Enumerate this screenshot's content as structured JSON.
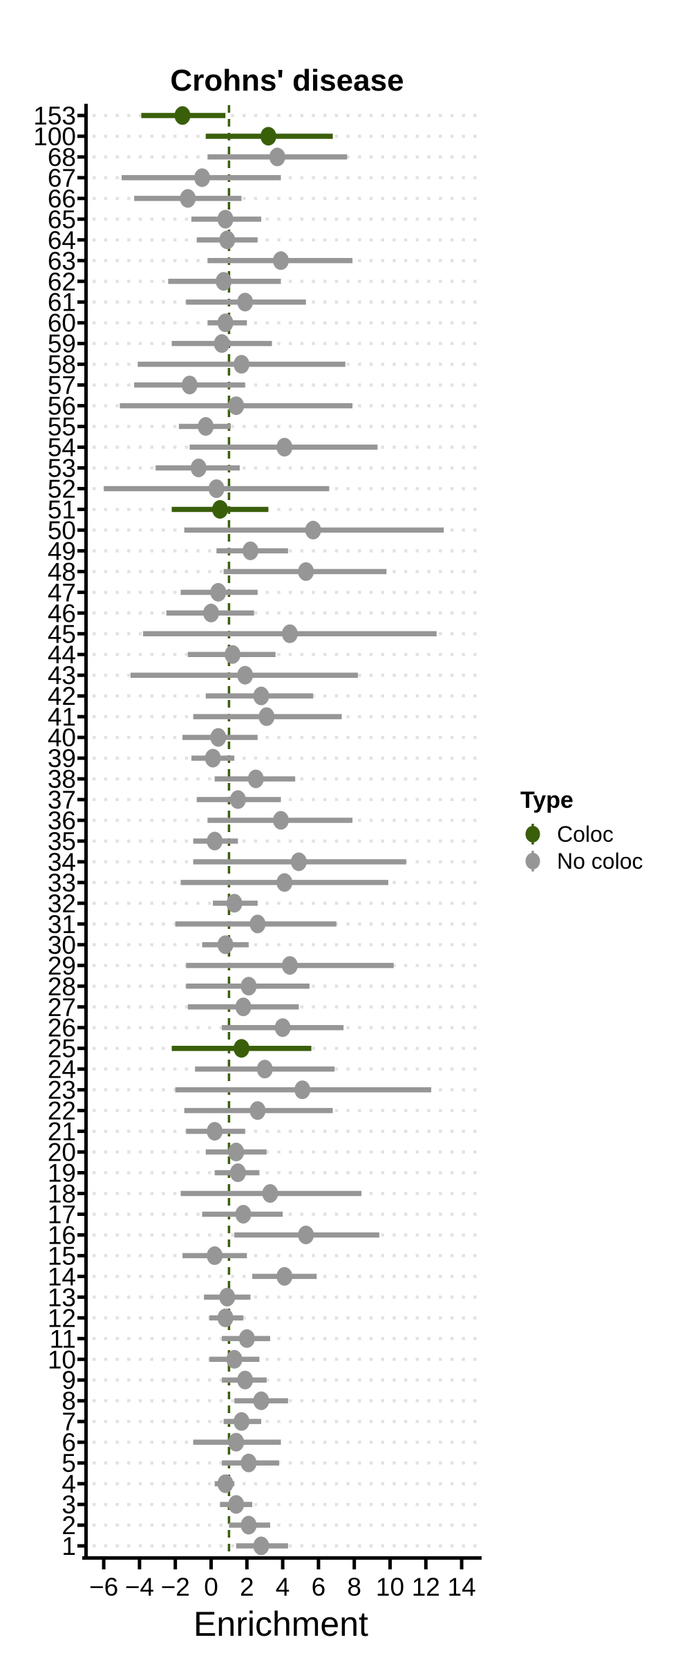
{
  "chart_data": {
    "type": "scatter",
    "variant": "forest-pointrange-horizontal",
    "title": "Crohns' disease",
    "xlabel": "Enrichment",
    "ylabel": "",
    "xlim": [
      -7.1,
      15.1
    ],
    "x_ticks": [
      {
        "v": -6,
        "label": "−6"
      },
      {
        "v": -4,
        "label": "−4"
      },
      {
        "v": -2,
        "label": "−2"
      },
      {
        "v": 0,
        "label": "0"
      },
      {
        "v": 2,
        "label": "2"
      },
      {
        "v": 4,
        "label": "4"
      },
      {
        "v": 6,
        "label": "6"
      },
      {
        "v": 8,
        "label": "8"
      },
      {
        "v": 10,
        "label": "10"
      },
      {
        "v": 12,
        "label": "12"
      },
      {
        "v": 14,
        "label": "14"
      }
    ],
    "reference_line_x": 1,
    "grid": "dotted-horizontal-per-row",
    "legend": {
      "title": "Type",
      "position": "right",
      "entries": [
        {
          "label": "Coloc",
          "type": "Coloc"
        },
        {
          "label": "No coloc",
          "type": "No coloc"
        }
      ]
    },
    "colors": {
      "coloc": "#3A5F0B",
      "no_coloc": "#969696",
      "reference_line": "#3A5F0B",
      "grid_dots": "#E2E2E2",
      "axis": "#000000",
      "title_text": "#1A1A1A"
    },
    "rows": [
      {
        "label": "153",
        "est": -1.6,
        "lo": -3.9,
        "hi": 0.8,
        "type": "Coloc"
      },
      {
        "label": "100",
        "est": 3.2,
        "lo": -0.3,
        "hi": 6.8,
        "type": "Coloc"
      },
      {
        "label": "68",
        "est": 3.7,
        "lo": -0.2,
        "hi": 7.6,
        "type": "No coloc"
      },
      {
        "label": "67",
        "est": -0.5,
        "lo": -5.0,
        "hi": 3.9,
        "type": "No coloc"
      },
      {
        "label": "66",
        "est": -1.3,
        "lo": -4.3,
        "hi": 1.7,
        "type": "No coloc"
      },
      {
        "label": "65",
        "est": 0.8,
        "lo": -1.1,
        "hi": 2.8,
        "type": "No coloc"
      },
      {
        "label": "64",
        "est": 0.9,
        "lo": -0.8,
        "hi": 2.6,
        "type": "No coloc"
      },
      {
        "label": "63",
        "est": 3.9,
        "lo": -0.2,
        "hi": 7.9,
        "type": "No coloc"
      },
      {
        "label": "62",
        "est": 0.7,
        "lo": -2.4,
        "hi": 3.9,
        "type": "No coloc"
      },
      {
        "label": "61",
        "est": 1.9,
        "lo": -1.4,
        "hi": 5.3,
        "type": "No coloc"
      },
      {
        "label": "60",
        "est": 0.8,
        "lo": -0.2,
        "hi": 2.0,
        "type": "No coloc"
      },
      {
        "label": "59",
        "est": 0.6,
        "lo": -2.2,
        "hi": 3.4,
        "type": "No coloc"
      },
      {
        "label": "58",
        "est": 1.7,
        "lo": -4.1,
        "hi": 7.5,
        "type": "No coloc"
      },
      {
        "label": "57",
        "est": -1.2,
        "lo": -4.3,
        "hi": 1.9,
        "type": "No coloc"
      },
      {
        "label": "56",
        "est": 1.4,
        "lo": -5.1,
        "hi": 7.9,
        "type": "No coloc"
      },
      {
        "label": "55",
        "est": -0.3,
        "lo": -1.8,
        "hi": 1.1,
        "type": "No coloc"
      },
      {
        "label": "54",
        "est": 4.1,
        "lo": -1.2,
        "hi": 9.3,
        "type": "No coloc"
      },
      {
        "label": "53",
        "est": -0.7,
        "lo": -3.1,
        "hi": 1.6,
        "type": "No coloc"
      },
      {
        "label": "52",
        "est": 0.3,
        "lo": -6.0,
        "hi": 6.6,
        "type": "No coloc"
      },
      {
        "label": "51",
        "est": 0.5,
        "lo": -2.2,
        "hi": 3.2,
        "type": "Coloc"
      },
      {
        "label": "50",
        "est": 5.7,
        "lo": -1.5,
        "hi": 13.0,
        "type": "No coloc"
      },
      {
        "label": "49",
        "est": 2.2,
        "lo": 0.3,
        "hi": 4.3,
        "type": "No coloc"
      },
      {
        "label": "48",
        "est": 5.3,
        "lo": 0.7,
        "hi": 9.8,
        "type": "No coloc"
      },
      {
        "label": "47",
        "est": 0.4,
        "lo": -1.7,
        "hi": 2.6,
        "type": "No coloc"
      },
      {
        "label": "46",
        "est": 0.0,
        "lo": -2.5,
        "hi": 2.4,
        "type": "No coloc"
      },
      {
        "label": "45",
        "est": 4.4,
        "lo": -3.8,
        "hi": 12.6,
        "type": "No coloc"
      },
      {
        "label": "44",
        "est": 1.2,
        "lo": -1.3,
        "hi": 3.6,
        "type": "No coloc"
      },
      {
        "label": "43",
        "est": 1.9,
        "lo": -4.5,
        "hi": 8.2,
        "type": "No coloc"
      },
      {
        "label": "42",
        "est": 2.8,
        "lo": -0.3,
        "hi": 5.7,
        "type": "No coloc"
      },
      {
        "label": "41",
        "est": 3.1,
        "lo": -1.0,
        "hi": 7.3,
        "type": "No coloc"
      },
      {
        "label": "40",
        "est": 0.4,
        "lo": -1.6,
        "hi": 2.6,
        "type": "No coloc"
      },
      {
        "label": "39",
        "est": 0.1,
        "lo": -1.1,
        "hi": 1.3,
        "type": "No coloc"
      },
      {
        "label": "38",
        "est": 2.5,
        "lo": 0.2,
        "hi": 4.7,
        "type": "No coloc"
      },
      {
        "label": "37",
        "est": 1.5,
        "lo": -0.8,
        "hi": 3.9,
        "type": "No coloc"
      },
      {
        "label": "36",
        "est": 3.9,
        "lo": -0.2,
        "hi": 7.9,
        "type": "No coloc"
      },
      {
        "label": "35",
        "est": 0.2,
        "lo": -1.0,
        "hi": 1.5,
        "type": "No coloc"
      },
      {
        "label": "34",
        "est": 4.9,
        "lo": -1.0,
        "hi": 10.9,
        "type": "No coloc"
      },
      {
        "label": "33",
        "est": 4.1,
        "lo": -1.7,
        "hi": 9.9,
        "type": "No coloc"
      },
      {
        "label": "32",
        "est": 1.3,
        "lo": 0.1,
        "hi": 2.6,
        "type": "No coloc"
      },
      {
        "label": "31",
        "est": 2.6,
        "lo": -2.0,
        "hi": 7.0,
        "type": "No coloc"
      },
      {
        "label": "30",
        "est": 0.8,
        "lo": -0.5,
        "hi": 2.1,
        "type": "No coloc"
      },
      {
        "label": "29",
        "est": 4.4,
        "lo": -1.4,
        "hi": 10.2,
        "type": "No coloc"
      },
      {
        "label": "28",
        "est": 2.1,
        "lo": -1.4,
        "hi": 5.5,
        "type": "No coloc"
      },
      {
        "label": "27",
        "est": 1.8,
        "lo": -1.3,
        "hi": 4.9,
        "type": "No coloc"
      },
      {
        "label": "26",
        "est": 4.0,
        "lo": 0.6,
        "hi": 7.4,
        "type": "No coloc"
      },
      {
        "label": "25",
        "est": 1.7,
        "lo": -2.2,
        "hi": 5.6,
        "type": "Coloc"
      },
      {
        "label": "24",
        "est": 3.0,
        "lo": -0.9,
        "hi": 6.9,
        "type": "No coloc"
      },
      {
        "label": "23",
        "est": 5.1,
        "lo": -2.0,
        "hi": 12.3,
        "type": "No coloc"
      },
      {
        "label": "22",
        "est": 2.6,
        "lo": -1.5,
        "hi": 6.8,
        "type": "No coloc"
      },
      {
        "label": "21",
        "est": 0.2,
        "lo": -1.4,
        "hi": 1.9,
        "type": "No coloc"
      },
      {
        "label": "20",
        "est": 1.4,
        "lo": -0.3,
        "hi": 3.1,
        "type": "No coloc"
      },
      {
        "label": "19",
        "est": 1.5,
        "lo": 0.2,
        "hi": 2.7,
        "type": "No coloc"
      },
      {
        "label": "18",
        "est": 3.3,
        "lo": -1.7,
        "hi": 8.4,
        "type": "No coloc"
      },
      {
        "label": "17",
        "est": 1.8,
        "lo": -0.5,
        "hi": 4.0,
        "type": "No coloc"
      },
      {
        "label": "16",
        "est": 5.3,
        "lo": 1.3,
        "hi": 9.4,
        "type": "No coloc"
      },
      {
        "label": "15",
        "est": 0.2,
        "lo": -1.6,
        "hi": 2.0,
        "type": "No coloc"
      },
      {
        "label": "14",
        "est": 4.1,
        "lo": 2.3,
        "hi": 5.9,
        "type": "No coloc"
      },
      {
        "label": "13",
        "est": 0.9,
        "lo": -0.4,
        "hi": 2.2,
        "type": "No coloc"
      },
      {
        "label": "12",
        "est": 0.8,
        "lo": -0.1,
        "hi": 1.8,
        "type": "No coloc"
      },
      {
        "label": "11",
        "est": 2.0,
        "lo": 0.6,
        "hi": 3.3,
        "type": "No coloc"
      },
      {
        "label": "10",
        "est": 1.3,
        "lo": -0.1,
        "hi": 2.7,
        "type": "No coloc"
      },
      {
        "label": "9",
        "est": 1.9,
        "lo": 0.6,
        "hi": 3.1,
        "type": "No coloc"
      },
      {
        "label": "8",
        "est": 2.8,
        "lo": 1.3,
        "hi": 4.3,
        "type": "No coloc"
      },
      {
        "label": "7",
        "est": 1.7,
        "lo": 0.7,
        "hi": 2.8,
        "type": "No coloc"
      },
      {
        "label": "6",
        "est": 1.4,
        "lo": -1.0,
        "hi": 3.9,
        "type": "No coloc"
      },
      {
        "label": "5",
        "est": 2.1,
        "lo": 0.6,
        "hi": 3.8,
        "type": "No coloc"
      },
      {
        "label": "4",
        "est": 0.8,
        "lo": 0.2,
        "hi": 1.3,
        "type": "No coloc"
      },
      {
        "label": "3",
        "est": 1.4,
        "lo": 0.5,
        "hi": 2.3,
        "type": "No coloc"
      },
      {
        "label": "2",
        "est": 2.1,
        "lo": 1.0,
        "hi": 3.3,
        "type": "No coloc"
      },
      {
        "label": "1",
        "est": 2.8,
        "lo": 1.4,
        "hi": 4.3,
        "type": "No coloc"
      }
    ]
  }
}
